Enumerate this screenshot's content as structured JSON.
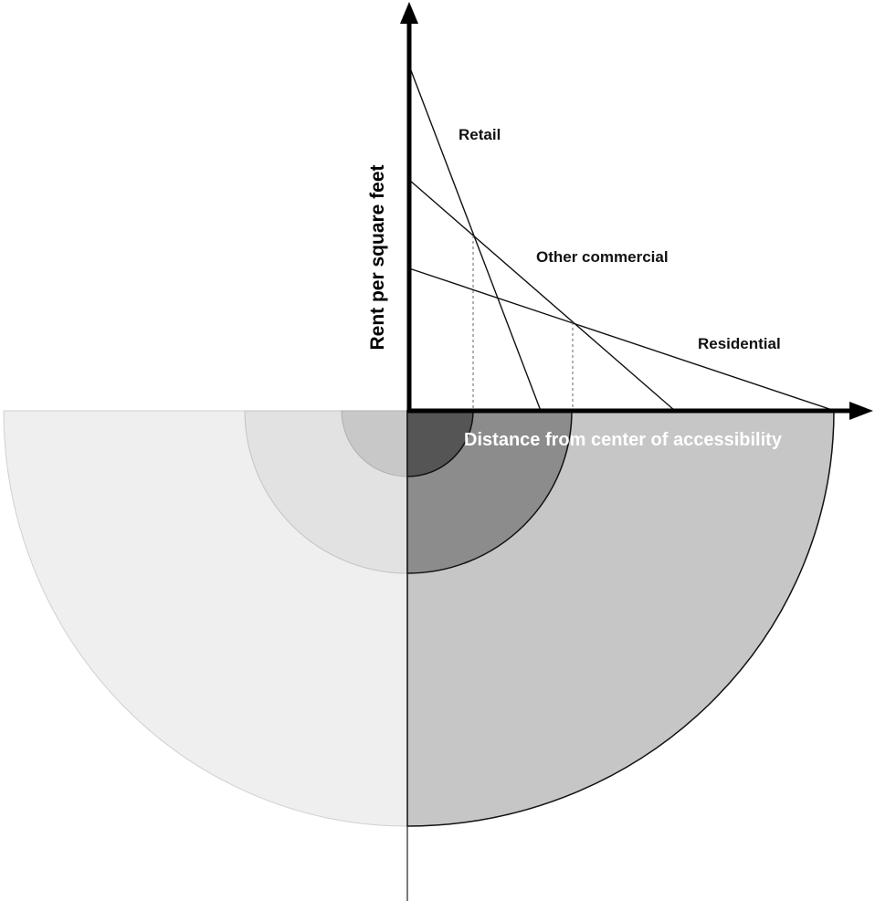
{
  "diagram": {
    "y_axis_label": "Rent per square feet",
    "x_axis_label": "Distance from center of accessibility",
    "curves": [
      {
        "id": "retail",
        "label": "Retail"
      },
      {
        "id": "other",
        "label": "Other commercial"
      },
      {
        "id": "residential",
        "label": "Residential"
      }
    ],
    "colors": {
      "axis": "#000000",
      "zone_retail_right": "#555555",
      "zone_other_right": "#8c8c8c",
      "zone_residential_right": "#c6c6c6",
      "zone_retail_left": "#c8c8c8",
      "zone_other_left": "#e2e2e2",
      "zone_residential_left": "#efefef"
    }
  }
}
